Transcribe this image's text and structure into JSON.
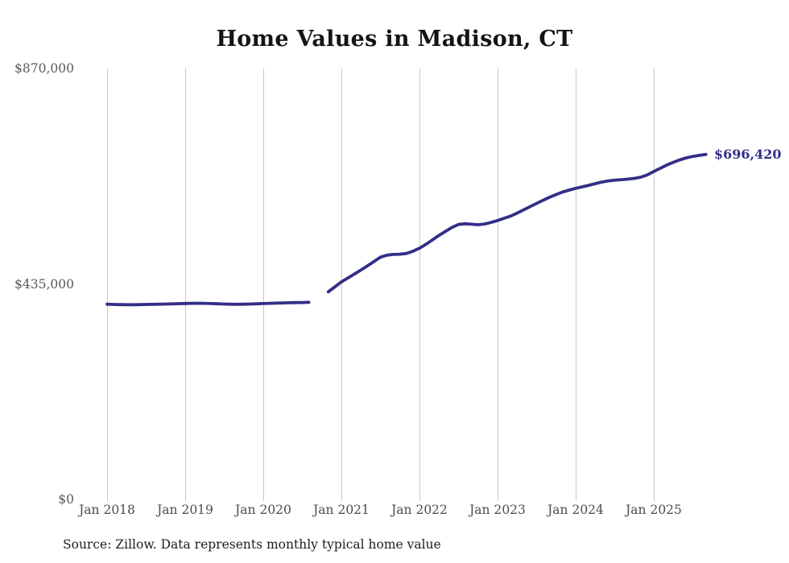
{
  "chart_data": {
    "type": "line",
    "title": "Home Values in Madison, CT",
    "xlabel": "",
    "ylabel": "",
    "x_tick_labels": [
      "Jan 2018",
      "Jan 2019",
      "Jan 2020",
      "Jan 2021",
      "Jan 2022",
      "Jan 2023",
      "Jan 2024",
      "Jan 2025"
    ],
    "y_tick_labels": [
      "$870,000",
      "$435,000",
      "$0"
    ],
    "ylim": [
      0,
      870000
    ],
    "x_start_month": "2018-01",
    "x_end_month": "2025-09",
    "frequency": "monthly",
    "gap_months": [
      "2020-09",
      "2020-10"
    ],
    "grid": "vertical-only",
    "legend": "none",
    "line_color": "#332e87",
    "gridline_color": "#c7c7c7",
    "end_label": "$696,420",
    "end_value": 696420,
    "series": [
      {
        "name": "Typical home value",
        "values": [
          394000,
          393600,
          393200,
          393000,
          393000,
          393200,
          393500,
          393800,
          394100,
          394400,
          394700,
          395100,
          395500,
          395800,
          396000,
          395800,
          395400,
          394900,
          394400,
          394000,
          393800,
          394000,
          394400,
          394900,
          395300,
          395800,
          396300,
          396700,
          397000,
          397200,
          397500,
          398000,
          null,
          null,
          419000,
          429000,
          439000,
          447000,
          455000,
          463000,
          471500,
          480000,
          489000,
          493000,
          494500,
          495000,
          496500,
          501000,
          507000,
          515000,
          524000,
          533000,
          541000,
          549000,
          555000,
          556500,
          555500,
          554500,
          556000,
          559000,
          563000,
          567500,
          572000,
          578000,
          584500,
          591000,
          597500,
          604000,
          610000,
          615500,
          620500,
          624500,
          628000,
          631000,
          634000,
          637500,
          640500,
          643000,
          644500,
          645500,
          646500,
          648000,
          650500,
          655000,
          662000,
          668500,
          675000,
          680500,
          685500,
          689500,
          692500,
          694500,
          696420
        ]
      }
    ]
  },
  "footer": {
    "source": "Source: Zillow. Data represents monthly typical home value"
  }
}
